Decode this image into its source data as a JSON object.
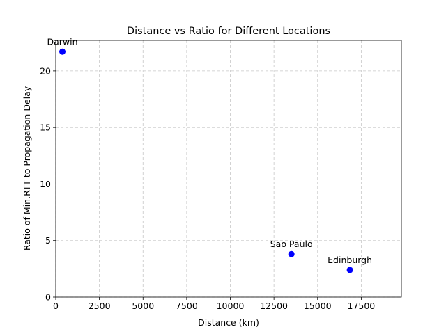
{
  "chart_data": {
    "type": "scatter",
    "title": "Distance vs Ratio for Different Locations",
    "xlabel": "Distance (km)",
    "ylabel": "Ratio of Min.RTT to Propagation Delay",
    "xlim": [
      0,
      19800
    ],
    "ylim": [
      0,
      22.7
    ],
    "xticks": [
      0,
      2500,
      5000,
      7500,
      10000,
      12500,
      15000,
      17500
    ],
    "yticks": [
      0,
      5,
      10,
      15,
      20
    ],
    "grid": true,
    "point_color": "#0000ff",
    "points": [
      {
        "label": "Darwin",
        "x": 380,
        "y": 21.7
      },
      {
        "label": "Sao Paulo",
        "x": 13500,
        "y": 3.8
      },
      {
        "label": "Edinburgh",
        "x": 16850,
        "y": 2.4
      }
    ]
  }
}
